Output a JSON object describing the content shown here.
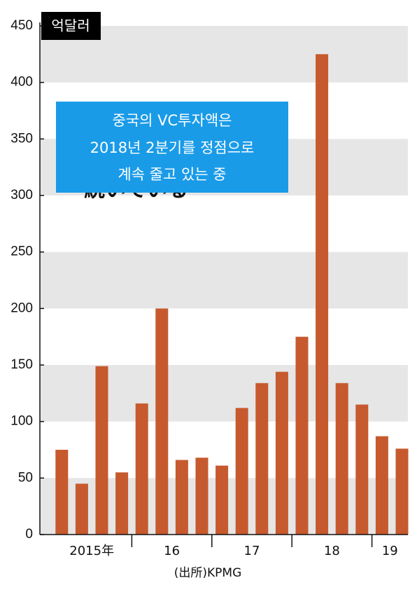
{
  "chart_data": {
    "type": "bar",
    "unit_label": "억달러",
    "annotation": [
      "중국의 VC투자액은",
      "2018년 2분기를 정점으로",
      "계속 줄고 있는 중"
    ],
    "hidden_text": "続いている",
    "source": "(出所)KPMG",
    "categories": [
      null,
      null,
      null,
      null,
      null,
      null,
      null,
      null,
      null,
      null,
      null,
      null,
      null,
      null,
      null,
      null,
      null,
      null
    ],
    "values": [
      75,
      45,
      149,
      55,
      116,
      200,
      66,
      68,
      61,
      112,
      134,
      144,
      175,
      425,
      134,
      115,
      87,
      76
    ],
    "x_groups": [
      "2015年",
      "16",
      "17",
      "18",
      "19"
    ],
    "color": "#c65a2e",
    "band_color": "#e6e6e6",
    "annotation_color": "#1a9be8",
    "ylim": [
      0,
      450
    ],
    "yticks": [
      0,
      50,
      100,
      150,
      200,
      250,
      300,
      350,
      400,
      450
    ]
  }
}
